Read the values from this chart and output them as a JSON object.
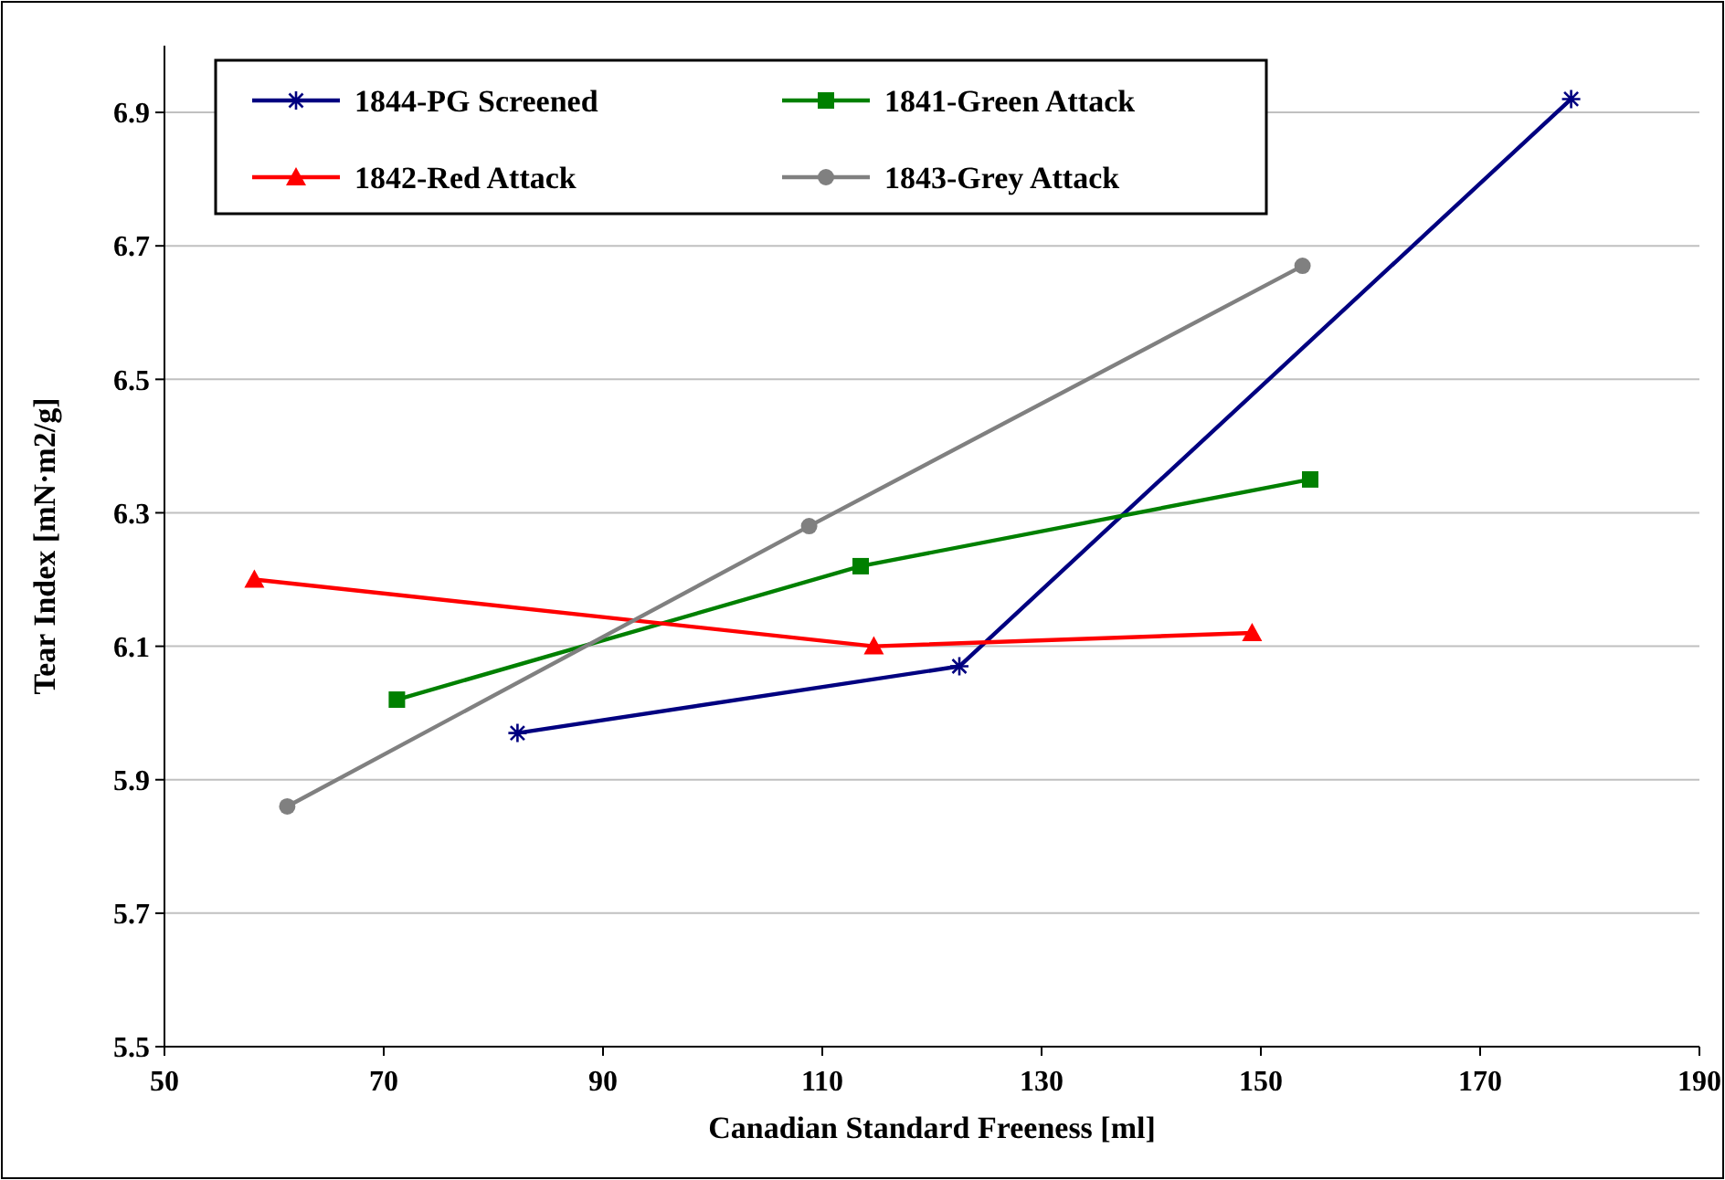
{
  "chart_data": {
    "type": "line",
    "xlabel": "Canadian Standard Freeness  [ml]",
    "ylabel": "Tear Index  [mN·m2/g]",
    "xlim": [
      50,
      190
    ],
    "xticks": [
      50,
      70,
      90,
      110,
      130,
      150,
      170,
      190
    ],
    "ylim": [
      5.5,
      7.0
    ],
    "yticks": [
      5.5,
      5.7,
      5.9,
      6.1,
      6.3,
      6.5,
      6.7,
      6.9
    ],
    "grid": "y",
    "legend": "top left",
    "series": [
      {
        "name": "1844-PG Screened",
        "color": "#000080",
        "marker": "cross",
        "x": [
          82.2,
          122.5,
          178.3
        ],
        "values": [
          5.97,
          6.07,
          6.92
        ]
      },
      {
        "name": "1841-Green Attack",
        "color": "#008000",
        "marker": "square",
        "x": [
          71.2,
          113.5,
          154.5
        ],
        "values": [
          6.02,
          6.22,
          6.35
        ]
      },
      {
        "name": "1842-Red Attack",
        "color": "#ff0000",
        "marker": "triangle",
        "x": [
          58.2,
          114.7,
          149.2
        ],
        "values": [
          6.2,
          6.1,
          6.12
        ]
      },
      {
        "name": "1843-Grey Attack",
        "color": "#808080",
        "marker": "circle",
        "x": [
          61.2,
          108.8,
          153.8
        ],
        "values": [
          5.86,
          6.28,
          6.67
        ]
      }
    ]
  }
}
